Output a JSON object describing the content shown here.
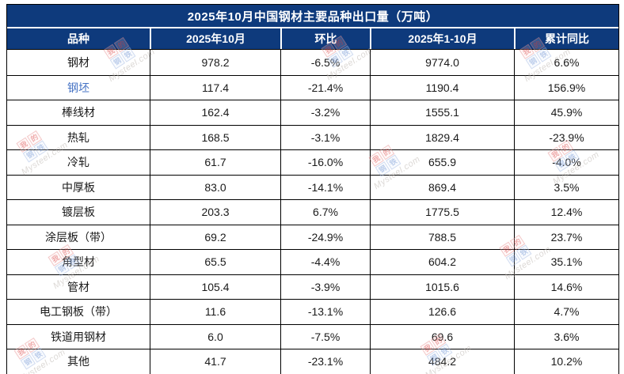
{
  "title": "2025年10月中国钢材主要品种出口量（万吨）",
  "table": {
    "columns": [
      "品种",
      "2025年10月",
      "环比",
      "2025年1-10月",
      "累计同比"
    ],
    "rows": [
      [
        "钢材",
        "978.2",
        "-6.5%",
        "9774.0",
        "6.6%"
      ],
      [
        "钢坯",
        "117.4",
        "-21.4%",
        "1190.4",
        "156.9%"
      ],
      [
        "棒线材",
        "162.4",
        "-3.2%",
        "1555.1",
        "45.9%"
      ],
      [
        "热轧",
        "168.5",
        "-3.1%",
        "1829.4",
        "-23.9%"
      ],
      [
        "冷轧",
        "61.7",
        "-16.0%",
        "655.9",
        "-4.0%"
      ],
      [
        "中厚板",
        "83.0",
        "-14.1%",
        "869.4",
        "3.5%"
      ],
      [
        "镀层板",
        "203.3",
        "6.7%",
        "1775.5",
        "12.4%"
      ],
      [
        "涂层板（带）",
        "69.2",
        "-24.9%",
        "788.5",
        "23.7%"
      ],
      [
        "角型材",
        "65.5",
        "-4.4%",
        "604.2",
        "35.1%"
      ],
      [
        "管材",
        "105.4",
        "-3.9%",
        "1015.6",
        "14.6%"
      ],
      [
        "电工钢板（带）",
        "11.6",
        "-13.1%",
        "126.6",
        "4.7%"
      ],
      [
        "铁道用钢材",
        "6.0",
        "-7.5%",
        "69.6",
        "3.6%"
      ],
      [
        "其他",
        "41.7",
        "-23.1%",
        "484.2",
        "10.2%"
      ]
    ],
    "link_row_index": 1
  },
  "watermark": {
    "chars": [
      "我",
      "的",
      "钢",
      "铁"
    ],
    "text": "Mysteel.com"
  },
  "colors": {
    "header_bg": "#0e3a7c",
    "header_text": "#ffffff",
    "link": "#4472c4",
    "border": "#000000"
  }
}
